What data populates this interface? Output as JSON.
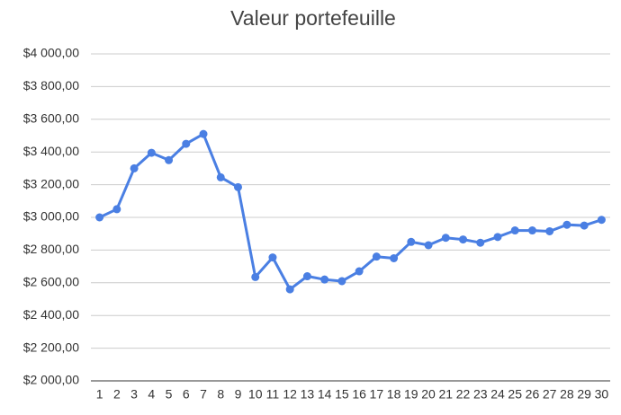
{
  "chart_data": {
    "type": "line",
    "title": "Valeur portefeuille",
    "categories": [
      1,
      2,
      3,
      4,
      5,
      6,
      7,
      8,
      9,
      10,
      11,
      12,
      13,
      14,
      15,
      16,
      17,
      18,
      19,
      20,
      21,
      22,
      23,
      24,
      25,
      26,
      27,
      28,
      29,
      30
    ],
    "values": [
      3000,
      3050,
      3300,
      3395,
      3350,
      3450,
      3510,
      3245,
      3185,
      2635,
      2755,
      2560,
      2640,
      2620,
      2610,
      2670,
      2760,
      2750,
      2850,
      2830,
      2875,
      2865,
      2845,
      2880,
      2920,
      2920,
      2915,
      2955,
      2950,
      2985
    ],
    "color": "#4a7fe3",
    "ylim": [
      2000,
      4000
    ],
    "yticks": [
      {
        "value": 2000,
        "label": "$2 000,00"
      },
      {
        "value": 2200,
        "label": "$2 200,00"
      },
      {
        "value": 2400,
        "label": "$2 400,00"
      },
      {
        "value": 2600,
        "label": "$2 600,00"
      },
      {
        "value": 2800,
        "label": "$2 800,00"
      },
      {
        "value": 3000,
        "label": "$3 000,00"
      },
      {
        "value": 3200,
        "label": "$3 200,00"
      },
      {
        "value": 3400,
        "label": "$3 400,00"
      },
      {
        "value": 3600,
        "label": "$3 600,00"
      },
      {
        "value": 3800,
        "label": "$3 800,00"
      },
      {
        "value": 4000,
        "label": "$4 000,00"
      }
    ],
    "grid": true
  }
}
